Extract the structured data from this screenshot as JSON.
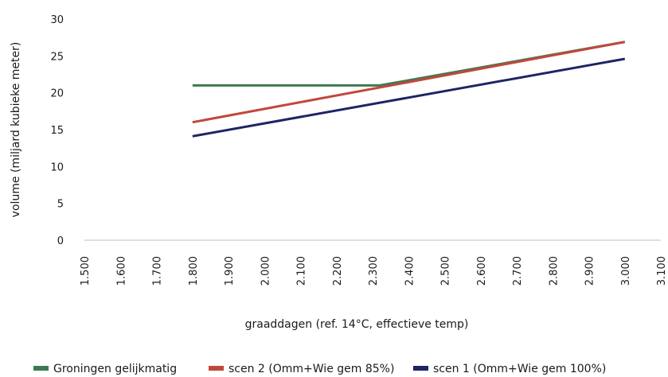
{
  "chart_data": {
    "type": "line",
    "title": "",
    "xlabel": "graaddagen (ref. 14°C, effectieve temp)",
    "ylabel": "volume (miljard kubieke meter)",
    "xlim": [
      1500,
      3100
    ],
    "ylim": [
      0,
      30
    ],
    "x_ticks": [
      1500,
      1600,
      1700,
      1800,
      1900,
      2000,
      2100,
      2200,
      2300,
      2400,
      2500,
      2600,
      2700,
      2800,
      2900,
      3000,
      3100
    ],
    "x_tick_labels": [
      "1.500",
      "1.600",
      "1.700",
      "1.800",
      "1.900",
      "2.000",
      "2.100",
      "2.200",
      "2.300",
      "2.400",
      "2.500",
      "2.600",
      "2.700",
      "2.800",
      "2.900",
      "3.000",
      "3.100"
    ],
    "y_ticks": [
      0,
      5,
      10,
      15,
      20,
      25,
      30
    ],
    "y_tick_labels": [
      "0",
      "5",
      "10",
      "15",
      "20",
      "25",
      "30"
    ],
    "grid": false,
    "legend_position": "bottom",
    "series": [
      {
        "name": "Groningen gelijkmatig",
        "color": "#3d7a52",
        "x": [
          1800,
          2320,
          3000
        ],
        "y": [
          21,
          21,
          26.9
        ]
      },
      {
        "name": "scen 2 (Omm+Wie gem 85%)",
        "color": "#c0483b",
        "x": [
          1800,
          3000
        ],
        "y": [
          16,
          26.9
        ]
      },
      {
        "name": "scen 1 (Omm+Wie gem 100%)",
        "color": "#1f2464",
        "x": [
          1800,
          3000
        ],
        "y": [
          14.1,
          24.6
        ]
      }
    ]
  }
}
